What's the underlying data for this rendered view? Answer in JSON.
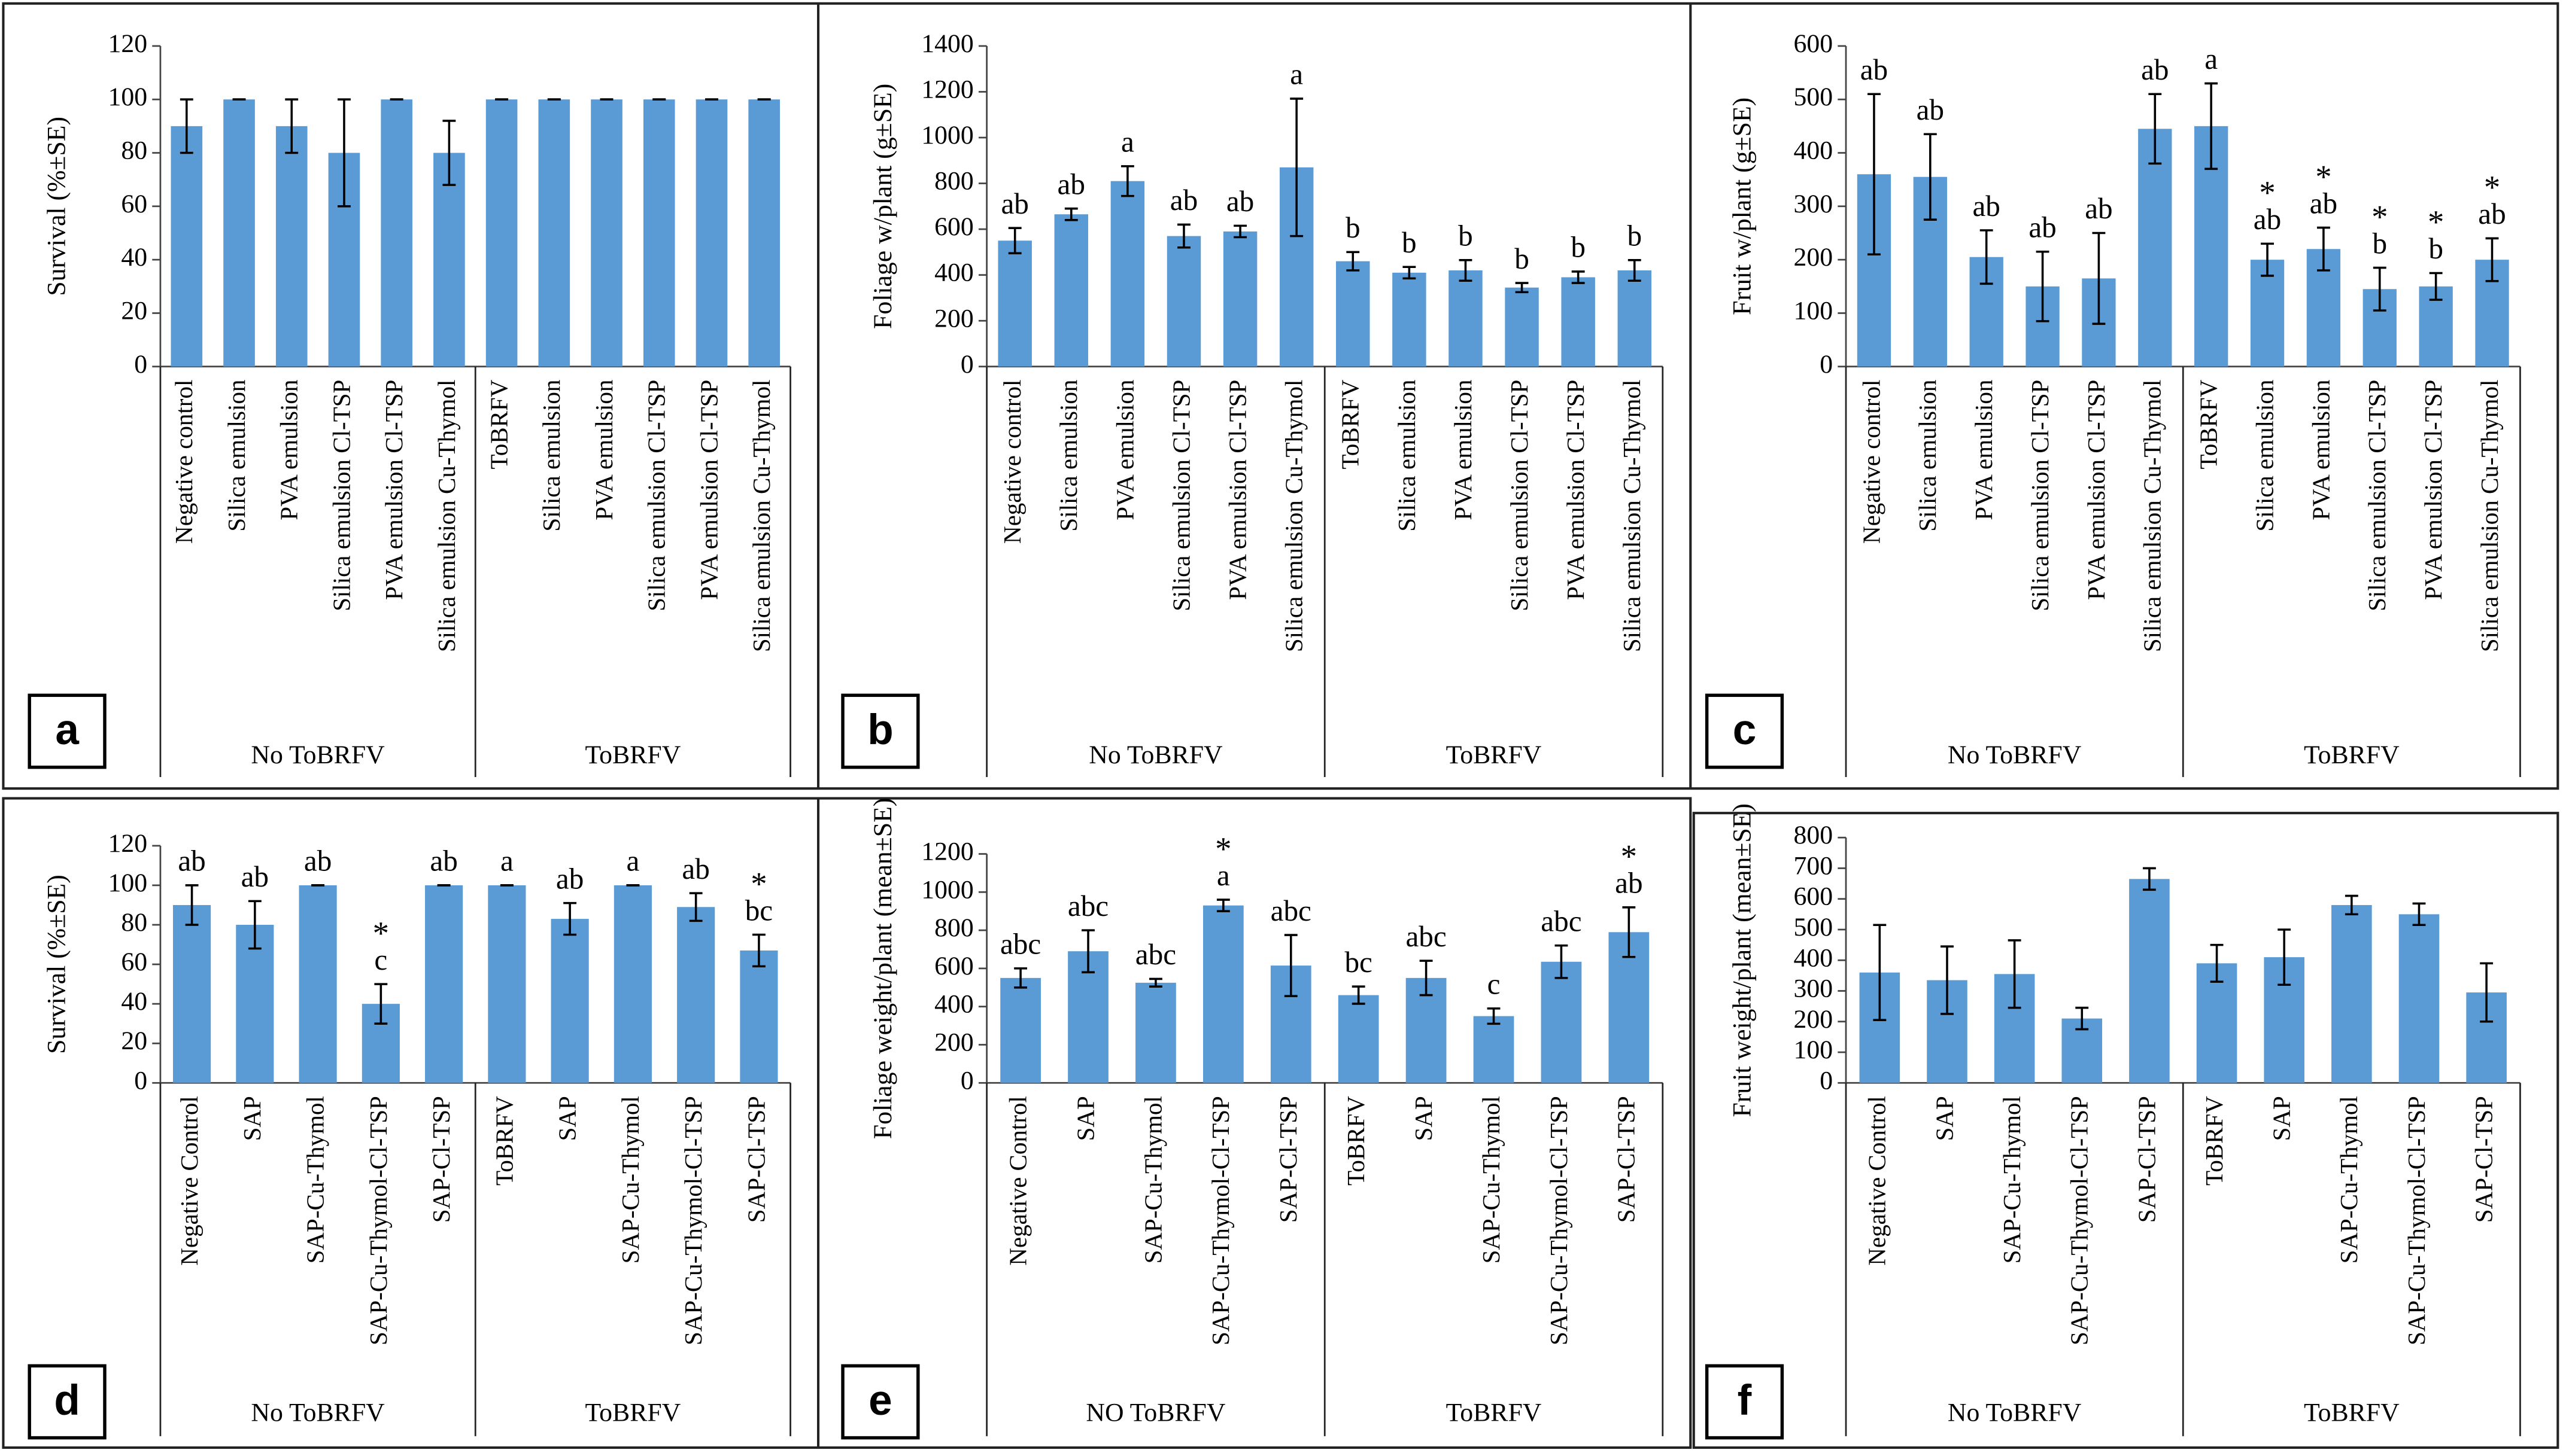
{
  "chart_data": [
    {
      "type": "bar",
      "panel_label": "a",
      "y_label": "Survival (%±SE)",
      "ylim": [
        0,
        120
      ],
      "yticks": [
        0,
        20,
        40,
        60,
        80,
        100,
        120
      ],
      "color": "#5b9bd5",
      "groups": [
        {
          "name": "No ToBRFV",
          "categories": [
            "Negative control",
            "Silica emulsion",
            "PVA emulsion",
            "Silica emulsion Cl-TSP",
            "PVA emulsion Cl-TSP",
            "Silica emulsion Cu-Thymol"
          ],
          "values": [
            90,
            100,
            90,
            80,
            100,
            80
          ],
          "errors": [
            10,
            0,
            10,
            20,
            0,
            12
          ]
        },
        {
          "name": "ToBRFV",
          "categories": [
            "ToBRFV",
            "Silica emulsion",
            "PVA emulsion",
            "Silica emulsion Cl-TSP",
            "PVA emulsion Cl-TSP",
            "Silica emulsion Cu-Thymol"
          ],
          "values": [
            100,
            100,
            100,
            100,
            100,
            100
          ],
          "errors": [
            0,
            0,
            0,
            0,
            0,
            0
          ]
        }
      ]
    },
    {
      "type": "bar",
      "panel_label": "b",
      "y_label": "Foliage w/plant (g±SE)",
      "ylim": [
        0,
        1400
      ],
      "yticks": [
        0,
        200,
        400,
        600,
        800,
        1000,
        1200,
        1400
      ],
      "color": "#5b9bd5",
      "groups": [
        {
          "name": "No ToBRFV",
          "categories": [
            "Negative control",
            "Silica emulsion",
            "PVA emulsion",
            "Silica emulsion Cl-TSP",
            "PVA emulsion Cl-TSP",
            "Silica emulsion Cu-Thymol"
          ],
          "values": [
            550,
            665,
            810,
            570,
            590,
            870
          ],
          "errors": [
            55,
            25,
            65,
            50,
            25,
            300
          ],
          "letters": [
            "ab",
            "ab",
            "a",
            "ab",
            "ab",
            "a"
          ]
        },
        {
          "name": "ToBRFV",
          "categories": [
            "ToBRFV",
            "Silica emulsion",
            "PVA emulsion",
            "Silica emulsion Cl-TSP",
            "PVA emulsion Cl-TSP",
            "Silica emulsion Cu-Thymol"
          ],
          "values": [
            460,
            410,
            420,
            345,
            390,
            420
          ],
          "errors": [
            40,
            25,
            45,
            20,
            25,
            45
          ],
          "letters": [
            "b",
            "b",
            "b",
            "b",
            "b",
            "b"
          ]
        }
      ]
    },
    {
      "type": "bar",
      "panel_label": "c",
      "y_label": "Fruit w/plant (g±SE)",
      "ylim": [
        0,
        600
      ],
      "yticks": [
        0,
        100,
        200,
        300,
        400,
        500,
        600
      ],
      "color": "#5b9bd5",
      "groups": [
        {
          "name": "No ToBRFV",
          "categories": [
            "Negative control",
            "Silica emulsion",
            "PVA emulsion",
            "Silica emulsion Cl-TSP",
            "PVA emulsion Cl-TSP",
            "Silica emulsion Cu-Thymol"
          ],
          "values": [
            360,
            355,
            205,
            150,
            165,
            445
          ],
          "errors": [
            150,
            80,
            50,
            65,
            85,
            65
          ],
          "letters": [
            "ab",
            "ab",
            "ab",
            "ab",
            "ab",
            "ab"
          ]
        },
        {
          "name": "ToBRFV",
          "categories": [
            "ToBRFV",
            "Silica emulsion",
            "PVA emulsion",
            "Silica emulsion Cl-TSP",
            "PVA emulsion Cl-TSP",
            "Silica emulsion Cu-Thymol"
          ],
          "values": [
            450,
            200,
            220,
            145,
            150,
            200
          ],
          "errors": [
            80,
            30,
            40,
            40,
            25,
            40
          ],
          "letters": [
            "a",
            "ab",
            "ab",
            "b",
            "b",
            "ab"
          ],
          "stars": [
            null,
            "*",
            "*",
            "*",
            "*",
            "*"
          ]
        }
      ]
    },
    {
      "type": "bar",
      "panel_label": "d",
      "y_label": "Survival (%±SE)",
      "ylim": [
        0,
        120
      ],
      "yticks": [
        0,
        20,
        40,
        60,
        80,
        100,
        120
      ],
      "color": "#5b9bd5",
      "groups": [
        {
          "name": "No ToBRFV",
          "categories": [
            "Negative Control",
            "SAP",
            "SAP-Cu-Thymol",
            "SAP-Cu-Thymol-Cl-TSP",
            "SAP-Cl-TSP"
          ],
          "values": [
            90,
            80,
            100,
            40,
            100
          ],
          "errors": [
            10,
            12,
            0,
            10,
            0
          ],
          "letters": [
            "ab",
            "ab",
            "ab",
            "c",
            "ab"
          ],
          "stars": [
            null,
            null,
            null,
            "*",
            null
          ]
        },
        {
          "name": "ToBRFV",
          "categories": [
            "ToBRFV",
            "SAP",
            "SAP-Cu-Thymol",
            "SAP-Cu-Thymol-Cl-TSP",
            "SAP-Cl-TSP"
          ],
          "values": [
            100,
            83,
            100,
            89,
            67
          ],
          "errors": [
            0,
            8,
            0,
            7,
            8
          ],
          "letters": [
            "a",
            "ab",
            "a",
            "ab",
            "bc"
          ],
          "stars": [
            null,
            null,
            null,
            null,
            "*"
          ]
        }
      ]
    },
    {
      "type": "bar",
      "panel_label": "e",
      "y_label": "Foliage weight/plant (mean±SE)",
      "ylim": [
        0,
        1200
      ],
      "yticks": [
        0,
        200,
        400,
        600,
        800,
        1000,
        1200
      ],
      "color": "#5b9bd5",
      "groups": [
        {
          "name": "NO ToBRFV",
          "categories": [
            "Negative Control",
            "SAP",
            "SAP-Cu-Thymol",
            "SAP-Cu-Thymol-Cl-TSP",
            "SAP-Cl-TSP"
          ],
          "values": [
            550,
            690,
            525,
            930,
            615
          ],
          "errors": [
            50,
            110,
            20,
            30,
            160
          ],
          "letters": [
            "abc",
            "abc",
            "abc",
            "a",
            "abc"
          ],
          "stars": [
            null,
            null,
            null,
            "*",
            null
          ]
        },
        {
          "name": "ToBRFV",
          "categories": [
            "ToBRFV",
            "SAP",
            "SAP-Cu-Thymol",
            "SAP-Cu-Thymol-Cl-TSP",
            "SAP-Cl-TSP"
          ],
          "values": [
            460,
            550,
            350,
            635,
            790
          ],
          "errors": [
            45,
            90,
            40,
            85,
            130
          ],
          "letters": [
            "bc",
            "abc",
            "c",
            "abc",
            "ab"
          ],
          "stars": [
            null,
            null,
            null,
            null,
            "*"
          ]
        }
      ]
    },
    {
      "type": "bar",
      "panel_label": "f",
      "y_label": "Fruit weight/plant (mean±SE)",
      "ylim": [
        0,
        800
      ],
      "yticks": [
        0,
        100,
        200,
        300,
        400,
        500,
        600,
        700,
        800
      ],
      "color": "#5b9bd5",
      "groups": [
        {
          "name": "No ToBRFV",
          "categories": [
            "Negative Control",
            "SAP",
            "SAP-Cu-Thymol",
            "SAP-Cu-Thymol-Cl-TSP",
            "SAP-Cl-TSP"
          ],
          "values": [
            360,
            335,
            355,
            210,
            665
          ],
          "errors": [
            155,
            110,
            110,
            35,
            35
          ]
        },
        {
          "name": "ToBRFV",
          "categories": [
            "ToBRFV",
            "SAP",
            "SAP-Cu-Thymol",
            "SAP-Cu-Thymol-Cl-TSP",
            "SAP-Cl-TSP"
          ],
          "values": [
            390,
            410,
            580,
            550,
            295
          ],
          "errors": [
            60,
            90,
            30,
            35,
            95
          ]
        }
      ]
    }
  ]
}
